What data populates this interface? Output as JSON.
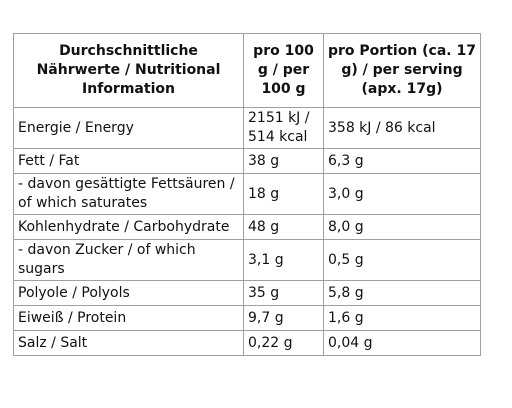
{
  "table": {
    "headers": [
      "Durchschnittliche Nährwerte / Nutritional Information",
      "pro 100 g / per 100 g",
      "pro Portion (ca. 17 g) / per serving (apx. 17g)"
    ],
    "rows": [
      [
        "Energie / Energy",
        "2151 kJ / 514 kcal",
        "358 kJ / 86 kcal"
      ],
      [
        "Fett / Fat",
        "38 g",
        "6,3 g"
      ],
      [
        "- davon gesättigte Fettsäuren / of which saturates",
        "18 g",
        "3,0 g"
      ],
      [
        "Kohlenhydrate / Carbohydrate",
        "48 g",
        "8,0 g"
      ],
      [
        "- davon Zucker / of which sugars",
        "3,1 g",
        "0,5 g"
      ],
      [
        "Polyole / Polyols",
        "35 g",
        "5,8 g"
      ],
      [
        "Eiweiß / Protein",
        "9,7 g",
        "1,6 g"
      ],
      [
        "Salz / Salt",
        "0,22 g",
        "0,04 g"
      ]
    ]
  }
}
